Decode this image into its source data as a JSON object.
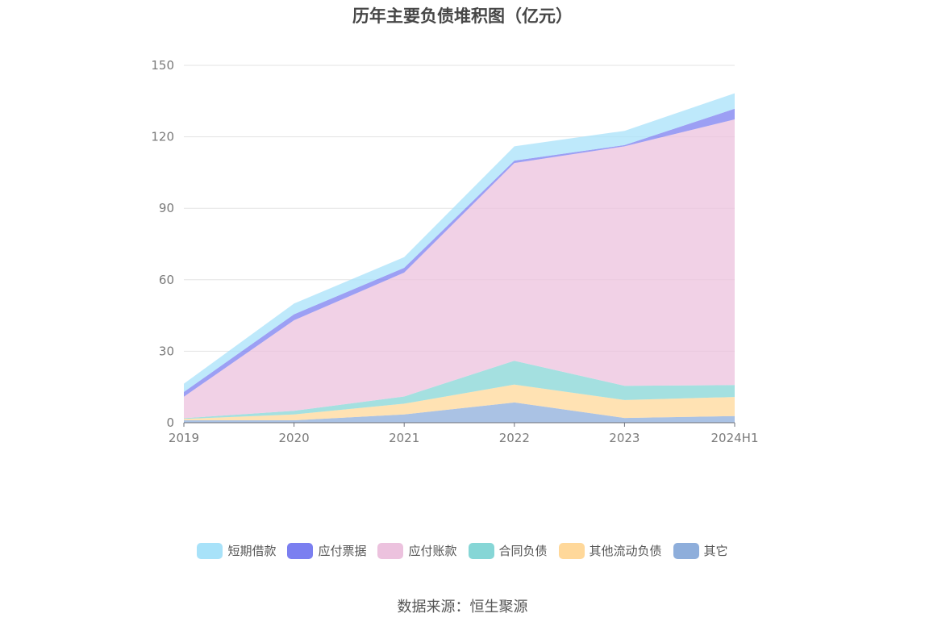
{
  "chart_data": {
    "type": "area",
    "stacked": true,
    "title": "历年主要负债堆积图（亿元）",
    "categories": [
      "2019",
      "2020",
      "2021",
      "2022",
      "2023",
      "2024H1"
    ],
    "ylim": [
      0,
      150
    ],
    "yticks": [
      0,
      30,
      60,
      90,
      120,
      150
    ],
    "grid": true,
    "legend_position": "bottom",
    "series": [
      {
        "name": "其它",
        "color": "#8eaedb",
        "values": [
          1.0,
          1.0,
          3.5,
          8.5,
          2.0,
          2.8
        ]
      },
      {
        "name": "其他流动负债",
        "color": "#ffd89a",
        "values": [
          0.6,
          2.5,
          4.5,
          7.5,
          7.5,
          8.0
        ]
      },
      {
        "name": "合同负债",
        "color": "#86d6d6",
        "values": [
          0.3,
          1.5,
          3.0,
          10.0,
          6.0,
          5.0
        ]
      },
      {
        "name": "应付账款",
        "color": "#ecc2de",
        "values": [
          9.0,
          38.0,
          52.0,
          83.0,
          100.5,
          111.5
        ]
      },
      {
        "name": "应付票据",
        "color": "#7b7ff0",
        "values": [
          2.0,
          2.5,
          2.0,
          1.0,
          0.5,
          4.5
        ]
      },
      {
        "name": "短期借款",
        "color": "#a8e2f9",
        "values": [
          3.5,
          4.5,
          4.5,
          6.0,
          6.0,
          6.5
        ]
      }
    ]
  },
  "footer": {
    "source": "数据来源：恒生聚源"
  }
}
